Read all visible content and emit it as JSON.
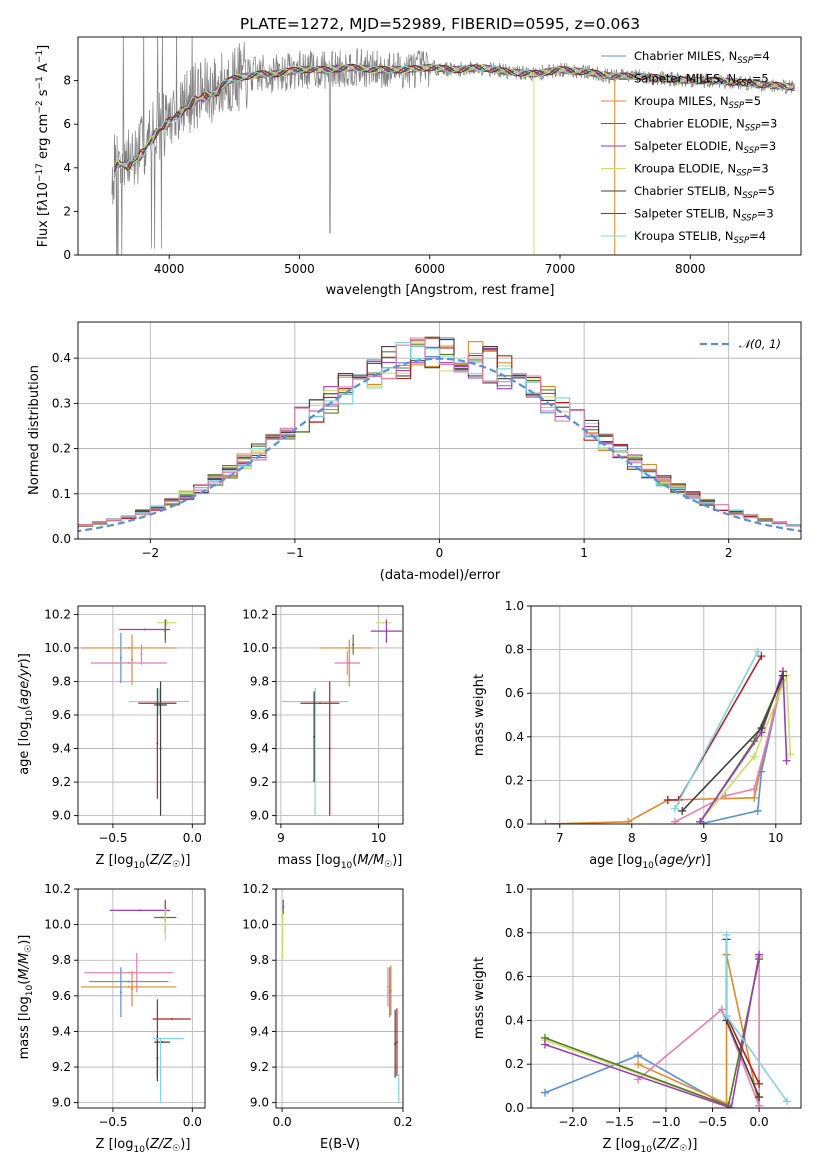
{
  "figure_title": "PLATE=1272, MJD=52989, FIBERID=0595, z=0.063",
  "chart_data": [
    {
      "id": "spectrum",
      "type": "line",
      "xlabel": "wavelength [Angstrom, rest frame]",
      "ylabel": "Flux [f_λ 10^-17 erg cm^-2 s^-1 A^-1]",
      "xlim": [
        3300,
        8850
      ],
      "ylim": [
        0,
        10
      ],
      "xticks": [
        4000,
        5000,
        6000,
        7000,
        8000
      ],
      "yticks": [
        0,
        2,
        4,
        6,
        8
      ],
      "grid": false,
      "legend_position": "right",
      "data_color": "#808080",
      "envelope": {
        "x": [
          3560,
          3600,
          3700,
          3800,
          3900,
          4000,
          4100,
          4200,
          4300,
          4400,
          4500,
          4600,
          4700,
          4800,
          4900,
          5000,
          5200,
          5400,
          5600,
          5800,
          6000,
          6200,
          6400,
          6600,
          6800,
          7000,
          7200,
          7400,
          7600,
          7800,
          8000,
          8200,
          8400,
          8600,
          8800
        ],
        "y": [
          3.6,
          4.4,
          4.3,
          4.9,
          5.8,
          6.3,
          6.8,
          7.3,
          7.5,
          7.8,
          8.1,
          8.2,
          8.3,
          8.3,
          8.4,
          8.5,
          8.5,
          8.6,
          8.5,
          8.5,
          8.6,
          8.5,
          8.6,
          8.4,
          8.3,
          8.5,
          8.4,
          8.2,
          8.2,
          8.1,
          8.0,
          8.0,
          7.9,
          7.8,
          7.7
        ]
      },
      "series": [
        {
          "name": "Chabrier MILES, N_SSP=4",
          "color": "#5b8fd8"
        },
        {
          "name": "Salpeter MILES, N_SSP=5",
          "color": "#8a8a8a"
        },
        {
          "name": "Kroupa MILES, N_SSP=5",
          "color": "#e08a2c"
        },
        {
          "name": "Chabrier ELODIE, N_SSP=3",
          "color": "#5a7a2a"
        },
        {
          "name": "Salpeter ELODIE, N_SSP=3",
          "color": "#9b3fb5"
        },
        {
          "name": "Kroupa ELODIE, N_SSP=3",
          "color": "#c8e06a"
        },
        {
          "name": "Chabrier STELIB, N_SSP=5",
          "color": "#404040"
        },
        {
          "name": "Salpeter STELIB, N_SSP=3",
          "color": "#b22222"
        },
        {
          "name": "Kroupa STELIB, N_SSP=4",
          "color": "#7fd6e0"
        }
      ]
    },
    {
      "id": "residuals",
      "type": "line",
      "xlabel": "(data-model)/error",
      "ylabel": "Normed distribution",
      "xlim": [
        -2.5,
        2.5
      ],
      "ylim": [
        0,
        0.48
      ],
      "xticks": [
        -2,
        -1,
        0,
        1,
        2
      ],
      "xtick_labels": [
        "−2",
        "−1",
        "0",
        "1",
        "2"
      ],
      "yticks": [
        0.0,
        0.1,
        0.2,
        0.3,
        0.4
      ],
      "ytick_labels": [
        "0.0",
        "0.1",
        "0.2",
        "0.3",
        "0.4"
      ],
      "grid": true,
      "legend_position": "top-right",
      "gauss_label": "𝒩(0, 1)",
      "gauss_color": "#5b8fd8",
      "hist_colors": [
        "#5b8fd8",
        "#e08a2c",
        "#5a7a2a",
        "#9b3fb5",
        "#c8e06a",
        "#404040",
        "#b22222",
        "#7fd6e0",
        "#e57fb0"
      ]
    },
    {
      "id": "age-vs-Z",
      "type": "scatter",
      "xlabel": "Z [log10(Z/Z☉)]",
      "ylabel": "age  [log10(age/yr)]",
      "xlim": [
        -0.72,
        0.08
      ],
      "ylim": [
        8.95,
        10.25
      ],
      "xticks": [
        -0.5,
        0.0
      ],
      "xtick_labels": [
        "−0.5",
        "0.0"
      ],
      "yticks": [
        9.0,
        9.2,
        9.4,
        9.6,
        9.8,
        10.0,
        10.2
      ],
      "grid": true,
      "points": [
        {
          "x": -0.45,
          "y": 9.94,
          "xerr": 0.0,
          "yerr": 0.15,
          "color": "#5b8fd8"
        },
        {
          "x": -0.38,
          "y": 9.93,
          "xerr": 0.0,
          "yerr": 0.15,
          "color": "#e08a2c"
        },
        {
          "x": -0.4,
          "y": 10.0,
          "xerr": 0.3,
          "yerr": 0.0,
          "color": "#e08a2c"
        },
        {
          "x": -0.4,
          "y": 9.91,
          "xerr": 0.24,
          "yerr": 0.0,
          "color": "#e57fb0"
        },
        {
          "x": -0.32,
          "y": 9.96,
          "xerr": 0.0,
          "yerr": 0.06,
          "color": "#e57fb0"
        },
        {
          "x": -0.3,
          "y": 10.11,
          "xerr": 0.16,
          "yerr": 0.0,
          "color": "#9b3fb5"
        },
        {
          "x": -0.17,
          "y": 10.11,
          "xerr": 0.0,
          "yerr": 0.06,
          "color": "#9b3fb5"
        },
        {
          "x": -0.16,
          "y": 10.15,
          "xerr": 0.06,
          "yerr": 0.02,
          "color": "#c8e06a"
        },
        {
          "x": -0.17,
          "y": 10.1,
          "xerr": 0.0,
          "yerr": 0.07,
          "color": "#5a7a2a"
        },
        {
          "x": -0.21,
          "y": 9.68,
          "xerr": 0.19,
          "yerr": 0.08,
          "color": "#7fd6e0"
        },
        {
          "x": -0.22,
          "y": 9.67,
          "xerr": 0.12,
          "yerr": 0.0,
          "color": "#b22222"
        },
        {
          "x": -0.2,
          "y": 9.4,
          "xerr": 0.0,
          "yerr": 0.4,
          "color": "#404040"
        },
        {
          "x": -0.22,
          "y": 9.43,
          "xerr": 0.0,
          "yerr": 0.33,
          "color": "#b22222"
        },
        {
          "x": -0.2,
          "y": 9.66,
          "xerr": 0.04,
          "yerr": 0.0,
          "color": "#404040"
        }
      ]
    },
    {
      "id": "age-vs-mass",
      "type": "scatter",
      "xlabel": "mass [log10(M/M☉)]",
      "ylabel": "",
      "xlim": [
        8.95,
        10.25
      ],
      "ylim": [
        8.95,
        10.25
      ],
      "xticks": [
        9,
        10
      ],
      "yticks": [
        9.0,
        9.2,
        9.4,
        9.6,
        9.8,
        10.0,
        10.2
      ],
      "grid": true,
      "points": [
        {
          "x": 9.67,
          "y": 10.0,
          "xerr": 0.27,
          "yerr": 0.0,
          "color": "#e08a2c"
        },
        {
          "x": 9.7,
          "y": 9.91,
          "xerr": 0.0,
          "yerr": 0.14,
          "color": "#e08a2c"
        },
        {
          "x": 9.68,
          "y": 9.91,
          "xerr": 0.13,
          "yerr": 0.07,
          "color": "#e57fb0"
        },
        {
          "x": 9.74,
          "y": 10.02,
          "xerr": 0.0,
          "yerr": 0.06,
          "color": "#5a7a2a"
        },
        {
          "x": 10.05,
          "y": 10.15,
          "xerr": 0.08,
          "yerr": 0.0,
          "color": "#c8e06a"
        },
        {
          "x": 10.08,
          "y": 10.1,
          "xerr": 0.16,
          "yerr": 0.07,
          "color": "#9b3fb5"
        },
        {
          "x": 9.35,
          "y": 9.68,
          "xerr": 0.34,
          "yerr": 0.08,
          "color": "#7fd6e0"
        },
        {
          "x": 9.35,
          "y": 9.38,
          "xerr": 0.0,
          "yerr": 0.38,
          "color": "#7fd6e0"
        },
        {
          "x": 9.4,
          "y": 9.67,
          "xerr": 0.2,
          "yerr": 0.0,
          "color": "#b22222"
        },
        {
          "x": 9.34,
          "y": 9.47,
          "xerr": 0.0,
          "yerr": 0.27,
          "color": "#404040"
        },
        {
          "x": 9.5,
          "y": 9.4,
          "xerr": 0.0,
          "yerr": 0.4,
          "color": "#b22222"
        }
      ]
    },
    {
      "id": "mass-weight-vs-age",
      "type": "line",
      "xlabel": "age  [log10(age/yr)]",
      "ylabel": "mass weight",
      "xlim": [
        6.6,
        10.35
      ],
      "ylim": [
        0,
        1
      ],
      "xticks": [
        7,
        8,
        9,
        10
      ],
      "yticks": [
        0.0,
        0.2,
        0.4,
        0.6,
        0.8,
        1.0
      ],
      "ytick_labels": [
        "0.0",
        "0.2",
        "0.4",
        "0.6",
        "0.8",
        "1.0"
      ],
      "grid": true,
      "series": [
        {
          "color": "#e08a2c",
          "x": [
            6.8,
            7.95,
            8.5,
            9.7,
            10.1
          ],
          "y": [
            0.0,
            0.01,
            0.11,
            0.12,
            0.7
          ]
        },
        {
          "color": "#5b8fd8",
          "x": [
            8.95,
            9.75,
            9.8,
            10.1
          ],
          "y": [
            0.0,
            0.06,
            0.24,
            0.68
          ]
        },
        {
          "color": "#e57fb0",
          "x": [
            8.6,
            9.3,
            9.7,
            10.1
          ],
          "y": [
            0.01,
            0.13,
            0.16,
            0.66
          ]
        },
        {
          "color": "#c8e06a",
          "x": [
            8.95,
            9.7,
            10.15,
            10.2
          ],
          "y": [
            0.01,
            0.31,
            0.68,
            0.32
          ]
        },
        {
          "color": "#5a7a2a",
          "x": [
            8.95,
            9.7,
            10.1
          ],
          "y": [
            0.01,
            0.38,
            0.68
          ]
        },
        {
          "color": "#9b3fb5",
          "x": [
            8.95,
            9.8,
            10.1,
            10.15
          ],
          "y": [
            0.01,
            0.42,
            0.7,
            0.29
          ]
        },
        {
          "color": "#b22222",
          "x": [
            8.5,
            8.65,
            9.8
          ],
          "y": [
            0.11,
            0.11,
            0.77
          ]
        },
        {
          "color": "#404040",
          "x": [
            8.7,
            9.8,
            10.1
          ],
          "y": [
            0.06,
            0.44,
            0.68
          ]
        },
        {
          "color": "#7fd6e0",
          "x": [
            8.6,
            9.75
          ],
          "y": [
            0.07,
            0.79
          ]
        }
      ]
    },
    {
      "id": "mass-vs-Z",
      "type": "scatter",
      "xlabel": "Z [log10(Z/Z☉)]",
      "ylabel": "mass [log10(M/M☉)]",
      "xlim": [
        -0.72,
        0.08
      ],
      "ylim": [
        8.97,
        10.2
      ],
      "xticks": [
        -0.5,
        0.0
      ],
      "xtick_labels": [
        "−0.5",
        "0.0"
      ],
      "yticks": [
        9.0,
        9.2,
        9.4,
        9.6,
        9.8,
        10.0,
        10.2
      ],
      "grid": true,
      "points": [
        {
          "x": -0.33,
          "y": 10.08,
          "xerr": 0.19,
          "yerr": 0.0,
          "color": "#9b3fb5"
        },
        {
          "x": -0.17,
          "y": 10.08,
          "xerr": 0.0,
          "yerr": 0.06,
          "color": "#9b3fb5"
        },
        {
          "x": -0.17,
          "y": 10.04,
          "xerr": 0.07,
          "yerr": 0.09,
          "color": "#5a7a2a"
        },
        {
          "x": -0.17,
          "y": 10.0,
          "xerr": 0.0,
          "yerr": 0.09,
          "color": "#c8e06a"
        },
        {
          "x": -0.4,
          "y": 9.73,
          "xerr": 0.28,
          "yerr": 0.0,
          "color": "#e57fb0"
        },
        {
          "x": -0.35,
          "y": 9.73,
          "xerr": 0.0,
          "yerr": 0.11,
          "color": "#e57fb0"
        },
        {
          "x": -0.38,
          "y": 9.64,
          "xerr": 0.0,
          "yerr": 0.1,
          "color": "#e08a2c"
        },
        {
          "x": -0.4,
          "y": 9.65,
          "xerr": 0.3,
          "yerr": 0.0,
          "color": "#e08a2c"
        },
        {
          "x": -0.45,
          "y": 9.62,
          "xerr": 0.0,
          "yerr": 0.14,
          "color": "#5b8fd8"
        },
        {
          "x": -0.4,
          "y": 9.68,
          "xerr": 0.25,
          "yerr": 0.0,
          "color": "#5b8fd8"
        },
        {
          "x": -0.13,
          "y": 9.47,
          "xerr": 0.12,
          "yerr": 0.0,
          "color": "#b22222"
        },
        {
          "x": -0.22,
          "y": 9.36,
          "xerr": 0.0,
          "yerr": 0.22,
          "color": "#b22222"
        },
        {
          "x": -0.19,
          "y": 9.34,
          "xerr": 0.05,
          "yerr": 0.0,
          "color": "#404040"
        },
        {
          "x": -0.22,
          "y": 9.25,
          "xerr": 0.0,
          "yerr": 0.13,
          "color": "#404040"
        },
        {
          "x": -0.2,
          "y": 9.18,
          "xerr": 0.0,
          "yerr": 0.18,
          "color": "#7fd6e0"
        },
        {
          "x": -0.15,
          "y": 9.36,
          "xerr": 0.1,
          "yerr": 0.0,
          "color": "#7fd6e0"
        }
      ]
    },
    {
      "id": "mass-vs-EBV",
      "type": "scatter",
      "xlabel": "E(B-V)",
      "ylabel": "",
      "xlim": [
        -0.01,
        0.2
      ],
      "ylim": [
        8.97,
        10.2
      ],
      "xticks": [
        0.0,
        0.2
      ],
      "xtick_labels": [
        "0.0",
        "0.2"
      ],
      "yticks": [
        9.0,
        9.2,
        9.4,
        9.6,
        9.8,
        10.0,
        10.2
      ],
      "grid": true,
      "points": [
        {
          "x": 0.001,
          "y": 9.95,
          "xerr": 0.0,
          "yerr": 0.14,
          "color": "#c8e06a"
        },
        {
          "x": 0.002,
          "y": 10.1,
          "xerr": 0.0,
          "yerr": 0.04,
          "color": "#9b3fb5"
        },
        {
          "x": 0.175,
          "y": 9.65,
          "xerr": 0.0,
          "yerr": 0.11,
          "color": "#e57fb0"
        },
        {
          "x": 0.178,
          "y": 9.62,
          "xerr": 0.0,
          "yerr": 0.14,
          "color": "#5b8fd8"
        },
        {
          "x": 0.18,
          "y": 9.63,
          "xerr": 0.0,
          "yerr": 0.14,
          "color": "#e08a2c"
        },
        {
          "x": 0.187,
          "y": 9.33,
          "xerr": 0.0,
          "yerr": 0.19,
          "color": "#404040"
        },
        {
          "x": 0.19,
          "y": 9.34,
          "xerr": 0.0,
          "yerr": 0.19,
          "color": "#b22222"
        },
        {
          "x": 0.193,
          "y": 9.08,
          "xerr": 0.0,
          "yerr": 0.08,
          "color": "#7fd6e0"
        }
      ]
    },
    {
      "id": "mass-weight-vs-Z",
      "type": "line",
      "xlabel": "Z [log10(Z/Z☉)]",
      "ylabel": "mass weight",
      "xlim": [
        -2.45,
        0.45
      ],
      "ylim": [
        0,
        1
      ],
      "xticks": [
        -2.0,
        -1.5,
        -1.0,
        -0.5,
        0.0
      ],
      "xtick_labels": [
        "−2.0",
        "−1.5",
        "−1.0",
        "−0.5",
        "0.0"
      ],
      "yticks": [
        0.0,
        0.2,
        0.4,
        0.6,
        0.8,
        1.0
      ],
      "ytick_labels": [
        "0.0",
        "0.2",
        "0.4",
        "0.6",
        "0.8",
        "1.0"
      ],
      "grid": true,
      "series": [
        {
          "color": "#5b8fd8",
          "x": [
            -2.3,
            -1.3,
            -0.35
          ],
          "y": [
            0.07,
            0.24,
            0.01
          ]
        },
        {
          "color": "#e08a2c",
          "x": [
            -1.3,
            -0.35,
            -0.35,
            0.0
          ],
          "y": [
            0.2,
            0.02,
            0.7,
            0.01
          ]
        },
        {
          "color": "#e57fb0",
          "x": [
            -1.3,
            -0.4,
            0.0,
            0.0
          ],
          "y": [
            0.13,
            0.45,
            0.01,
            0.69
          ]
        },
        {
          "color": "#c8e06a",
          "x": [
            -2.3,
            -0.33,
            0.0
          ],
          "y": [
            0.31,
            0.01,
            0.68
          ]
        },
        {
          "color": "#5a7a2a",
          "x": [
            -2.3,
            -0.33,
            0.0
          ],
          "y": [
            0.32,
            0.01,
            0.68
          ]
        },
        {
          "color": "#9b3fb5",
          "x": [
            -2.3,
            -0.3,
            0.0
          ],
          "y": [
            0.29,
            0.0,
            0.7
          ]
        },
        {
          "color": "#404040",
          "x": [
            -0.35,
            -0.35,
            0.0
          ],
          "y": [
            0.77,
            0.4,
            0.05
          ]
        },
        {
          "color": "#b22222",
          "x": [
            -0.35,
            0.0
          ],
          "y": [
            0.42,
            0.11
          ]
        },
        {
          "color": "#7fd6e0",
          "x": [
            -0.35,
            -0.35,
            0.3
          ],
          "y": [
            0.79,
            0.42,
            0.03
          ]
        }
      ]
    }
  ]
}
